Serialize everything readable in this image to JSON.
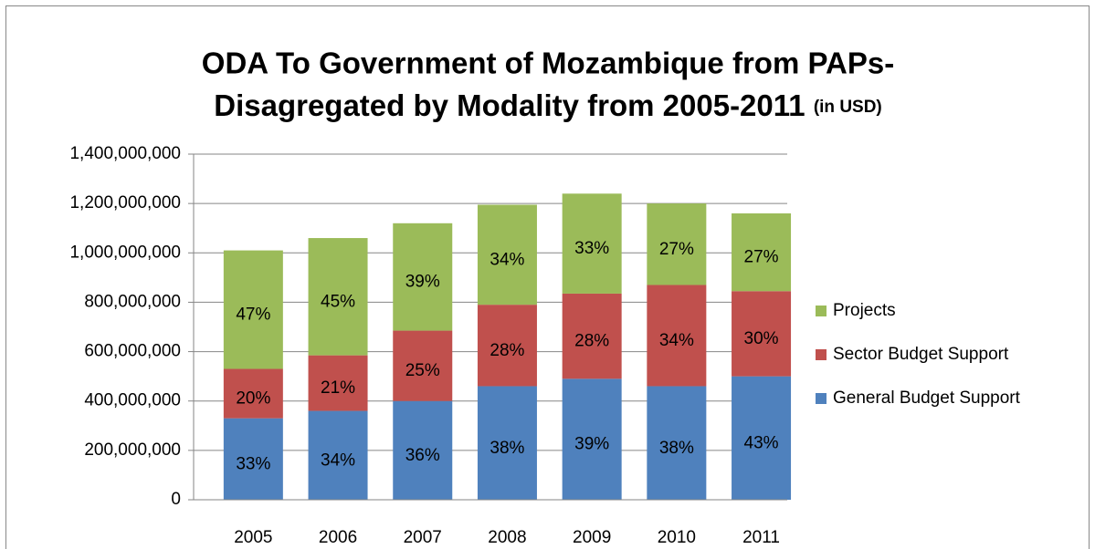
{
  "chart_data": {
    "type": "stacked_bar",
    "title": [
      "ODA To Government of Mozambique from PAPs-",
      "Disagregated by Modality from 2005-2011"
    ],
    "title_unit": "(in USD)",
    "categories": [
      "2005",
      "2006",
      "2007",
      "2008",
      "2009",
      "2010",
      "2011"
    ],
    "series": [
      {
        "name": "General Budget Support",
        "color": "#4f81bd",
        "values": [
          330000000,
          360000000,
          400000000,
          460000000,
          490000000,
          460000000,
          500000000
        ],
        "percent_labels": [
          "33%",
          "34%",
          "36%",
          "38%",
          "39%",
          "38%",
          "43%"
        ]
      },
      {
        "name": "Sector Budget Support",
        "color": "#c0504d",
        "values": [
          200000000,
          225000000,
          285000000,
          330000000,
          345000000,
          410000000,
          345000000
        ],
        "percent_labels": [
          "20%",
          "21%",
          "25%",
          "28%",
          "28%",
          "34%",
          "30%"
        ]
      },
      {
        "name": "Projects",
        "color": "#9bbb59",
        "values": [
          480000000,
          475000000,
          435000000,
          405000000,
          405000000,
          330000000,
          315000000
        ],
        "percent_labels": [
          "47%",
          "45%",
          "39%",
          "34%",
          "33%",
          "27%",
          "27%"
        ]
      }
    ],
    "ylim": [
      0,
      1400000000
    ],
    "yticks": [
      0,
      {
        "value": 200000000,
        "label": "200,000,000"
      },
      {
        "value": 400000000,
        "label": "400,000,000"
      },
      {
        "value": 600000000,
        "label": "600,000,000"
      },
      {
        "value": 800000000,
        "label": "800,000,000"
      },
      {
        "value": 1000000000,
        "label": "1,000,000,000"
      },
      {
        "value": 1200000000,
        "label": "1,200,000,000"
      },
      {
        "value": 1400000000,
        "label": "1,400,000,000"
      }
    ],
    "grid": true,
    "legend": "right"
  }
}
